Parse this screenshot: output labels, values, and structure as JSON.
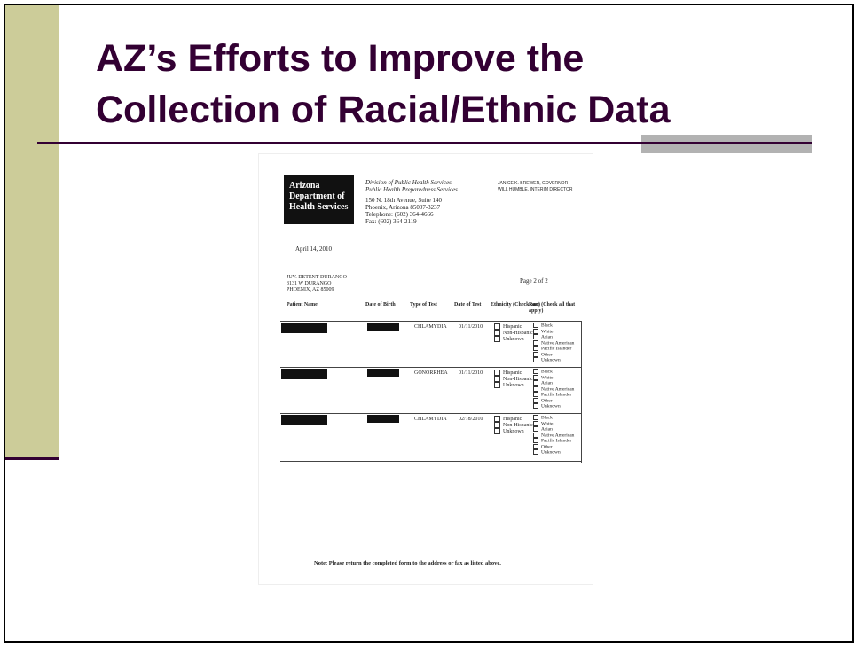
{
  "slide": {
    "title": [
      "AZ’s Efforts to Improve the",
      "Collection of Racial/Ethnic Data"
    ]
  },
  "document": {
    "logo": [
      "Arizona",
      "Department of",
      "Health Services"
    ],
    "division": [
      "Division of Public Health Services",
      "Public Health Preparedness Services"
    ],
    "address_lines": [
      "150 N. 18th Avenue, Suite 140",
      "Phoenix, Arizona 85007-3237",
      "Telephone: (602) 364-4666",
      "Fax: (602) 364-2119"
    ],
    "officials": [
      "JANICE K. BREWER, GOVERNOR",
      "WILL HUMBLE, INTERIM DIRECTOR"
    ],
    "date": "April 14, 2010",
    "recipient": [
      "JUV. DETENT DURANGO",
      "3131 W DURANGO",
      "PHOENIX, AZ 85009"
    ],
    "page": "Page 2 of 2",
    "headers": [
      "Patient Name",
      "Date of Birth",
      "Type of Test",
      "Date of Test",
      "Ethnicity (Check one)",
      "Race (Check all that apply)"
    ],
    "rows": [
      [
        "CHLAMYDIA",
        "01/11/2010"
      ],
      [
        "GONORRHEA",
        "01/11/2010"
      ],
      [
        "CHLAMYDIA",
        "02/18/2010"
      ]
    ],
    "ethnicity_options": [
      "Hispanic",
      "Non-Hispanic",
      "Unknown"
    ],
    "race_options": [
      "Black",
      "White",
      "Asian",
      "Native American",
      "Pacific Islander",
      "Other",
      "Unknown"
    ],
    "note": "Note: Please return the completed form to the address or fax as listed above."
  }
}
